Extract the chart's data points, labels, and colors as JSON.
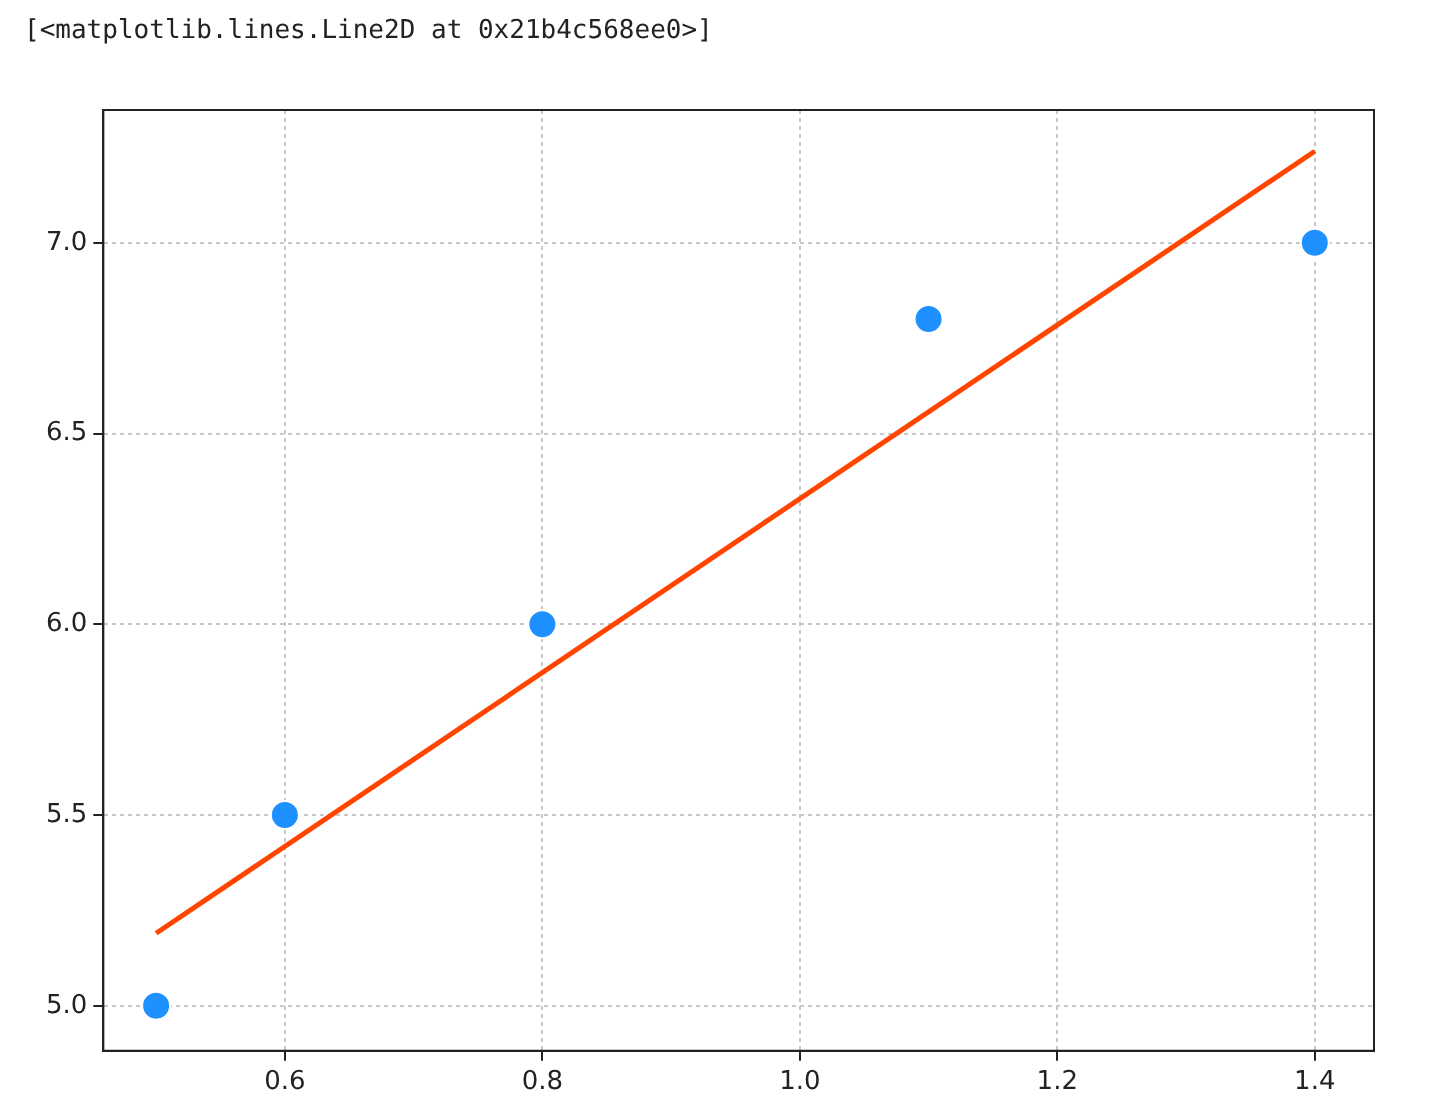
{
  "chart_data": {
    "type": "scatter",
    "annotations": [
      "[<matplotlib.lines.Line2D at 0x21b4c568ee0>]"
    ],
    "series": [
      {
        "marker": "circle",
        "color": "#1e90ff",
        "x": [
          0.5,
          0.6,
          0.8,
          1.1,
          1.4
        ],
        "values": [
          5.0,
          5.5,
          6.0,
          6.8,
          7.0
        ]
      },
      {
        "type": "line",
        "marker": "none",
        "color": "#ff4500",
        "x": [
          0.5,
          1.4
        ],
        "values": [
          5.19,
          7.24
        ]
      }
    ],
    "xlim": [
      0.459,
      1.446
    ],
    "ylim": [
      4.882,
      7.348
    ],
    "xticks": [
      0.6,
      0.8,
      {
        "value": 1,
        "label": "1.0"
      },
      1.2,
      1.4
    ],
    "yticks": [
      {
        "value": 5,
        "label": "5.0"
      },
      5.5,
      {
        "value": 6,
        "label": "6.0"
      },
      6.5,
      {
        "value": 7,
        "label": "7.0"
      }
    ],
    "grid": true,
    "legend": false,
    "line_style": "solid"
  }
}
